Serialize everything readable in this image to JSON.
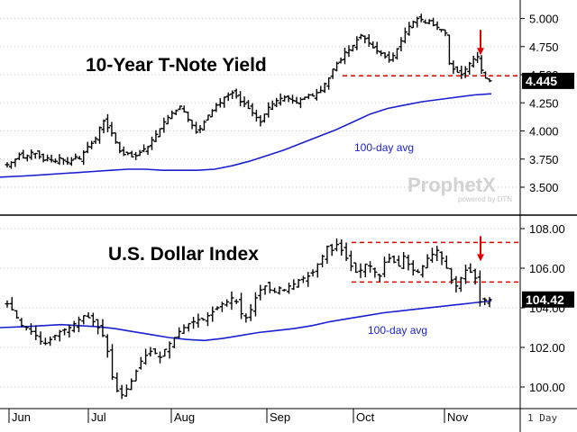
{
  "chart_data": [
    {
      "type": "ohlc",
      "title": "10-Year T-Note Yield",
      "ylim": [
        3.3,
        5.1
      ],
      "yticks": [
        "5.000",
        "4.750",
        "4.500",
        "4.250",
        "4.000",
        "3.750",
        "3.500"
      ],
      "ytick_values": [
        5.0,
        4.75,
        4.5,
        4.25,
        4.0,
        3.75,
        3.5
      ],
      "last_value_label": "4.445",
      "last_value": 4.445,
      "reference_lines": [
        4.49
      ],
      "ma_label": "100-day avg",
      "series": [
        {
          "name": "10-Year T-Note Yield (daily close)",
          "values": [
            3.7,
            3.72,
            3.75,
            3.79,
            3.76,
            3.78,
            3.81,
            3.8,
            3.77,
            3.74,
            3.76,
            3.74,
            3.73,
            3.76,
            3.74,
            3.72,
            3.74,
            3.77,
            3.75,
            3.81,
            3.86,
            3.89,
            3.93,
            4.03,
            4.09,
            4.03,
            3.98,
            3.9,
            3.82,
            3.79,
            3.8,
            3.77,
            3.78,
            3.81,
            3.84,
            3.86,
            3.92,
            3.97,
            4.02,
            4.08,
            4.12,
            4.16,
            4.18,
            4.22,
            4.17,
            4.1,
            4.05,
            3.99,
            4.02,
            4.08,
            4.14,
            4.18,
            4.23,
            4.25,
            4.3,
            4.32,
            4.34,
            4.31,
            4.26,
            4.24,
            4.2,
            4.16,
            4.12,
            4.08,
            4.15,
            4.21,
            4.24,
            4.27,
            4.29,
            4.3,
            4.29,
            4.27,
            4.25,
            4.28,
            4.3,
            4.32,
            4.31,
            4.34,
            4.36,
            4.42,
            4.47,
            4.55,
            4.6,
            4.63,
            4.7,
            4.72,
            4.76,
            4.81,
            4.85,
            4.82,
            4.78,
            4.74,
            4.71,
            4.69,
            4.66,
            4.63,
            4.67,
            4.73,
            4.8,
            4.88,
            4.93,
            4.97,
            5.0,
            4.99,
            4.96,
            4.98,
            4.94,
            4.92,
            4.9,
            4.87,
            4.6,
            4.55,
            4.52,
            4.5,
            4.55,
            4.6,
            4.64,
            4.66,
            4.54,
            4.47,
            4.445
          ]
        },
        {
          "name": "100-day avg",
          "values": [
            3.59,
            3.6,
            3.61,
            3.62,
            3.63,
            3.64,
            3.65,
            3.66,
            3.66,
            3.65,
            3.65,
            3.65,
            3.66,
            3.69,
            3.73,
            3.78,
            3.83,
            3.89,
            3.95,
            4.01,
            4.08,
            4.15,
            4.2,
            4.23,
            4.26,
            4.28,
            4.3,
            4.32,
            4.33
          ]
        }
      ]
    },
    {
      "type": "ohlc",
      "title": "U.S. Dollar Index",
      "ylim": [
        99.0,
        108.5
      ],
      "yticks": [
        "108.00",
        "106.00",
        "104.00",
        "102.00",
        "100.00"
      ],
      "ytick_values": [
        108.0,
        106.0,
        104.0,
        102.0,
        100.0
      ],
      "last_value_label": "104.42",
      "last_value": 104.42,
      "reference_lines": [
        107.3,
        105.3
      ],
      "ma_label": "100-day avg",
      "series": [
        {
          "name": "U.S. Dollar Index (daily close)",
          "values": [
            104.2,
            103.9,
            103.5,
            103.1,
            103.0,
            102.8,
            102.6,
            102.3,
            102.2,
            102.4,
            102.6,
            102.8,
            102.9,
            103.0,
            103.2,
            103.4,
            103.6,
            103.5,
            103.3,
            103.0,
            102.6,
            101.8,
            100.5,
            99.8,
            99.6,
            99.9,
            100.3,
            100.8,
            101.3,
            101.6,
            101.8,
            101.7,
            101.5,
            101.9,
            102.2,
            102.5,
            102.8,
            103.0,
            103.2,
            103.3,
            103.4,
            103.4,
            103.6,
            103.8,
            104.0,
            104.2,
            104.3,
            104.5,
            104.3,
            103.7,
            103.5,
            103.9,
            104.5,
            104.9,
            105.1,
            104.9,
            104.8,
            105.0,
            104.9,
            105.1,
            105.2,
            105.4,
            105.5,
            105.6,
            105.8,
            106.2,
            106.6,
            107.1,
            106.9,
            107.2,
            106.9,
            106.5,
            106.1,
            105.8,
            105.9,
            106.2,
            106.1,
            105.8,
            105.6,
            106.3,
            106.5,
            106.3,
            106.1,
            106.6,
            106.2,
            105.9,
            105.8,
            106.1,
            106.5,
            106.7,
            106.9,
            106.5,
            106.0,
            105.4,
            105.1,
            105.5,
            105.9,
            105.8,
            105.5,
            104.3,
            104.4,
            104.42
          ]
        },
        {
          "name": "100-day avg",
          "values": [
            103.0,
            103.05,
            103.1,
            103.15,
            103.1,
            103.05,
            102.95,
            102.8,
            102.65,
            102.5,
            102.4,
            102.35,
            102.45,
            102.6,
            102.75,
            102.85,
            102.95,
            103.1,
            103.3,
            103.45,
            103.6,
            103.75,
            103.85,
            103.95,
            104.05,
            104.15,
            104.25,
            104.35
          ]
        }
      ]
    }
  ],
  "x_axis": {
    "months": [
      "Jun",
      "Jul",
      "Aug",
      "Sep",
      "Oct",
      "Nov"
    ],
    "period_label": "1 Day"
  },
  "watermark": {
    "brand": "ProphetX",
    "tagline": "powered by DTN"
  },
  "colors": {
    "price": "#000000",
    "average": "#1a1fd1",
    "reference": "#e00000",
    "arrow": "#e00000",
    "last_bg": "#000000"
  }
}
